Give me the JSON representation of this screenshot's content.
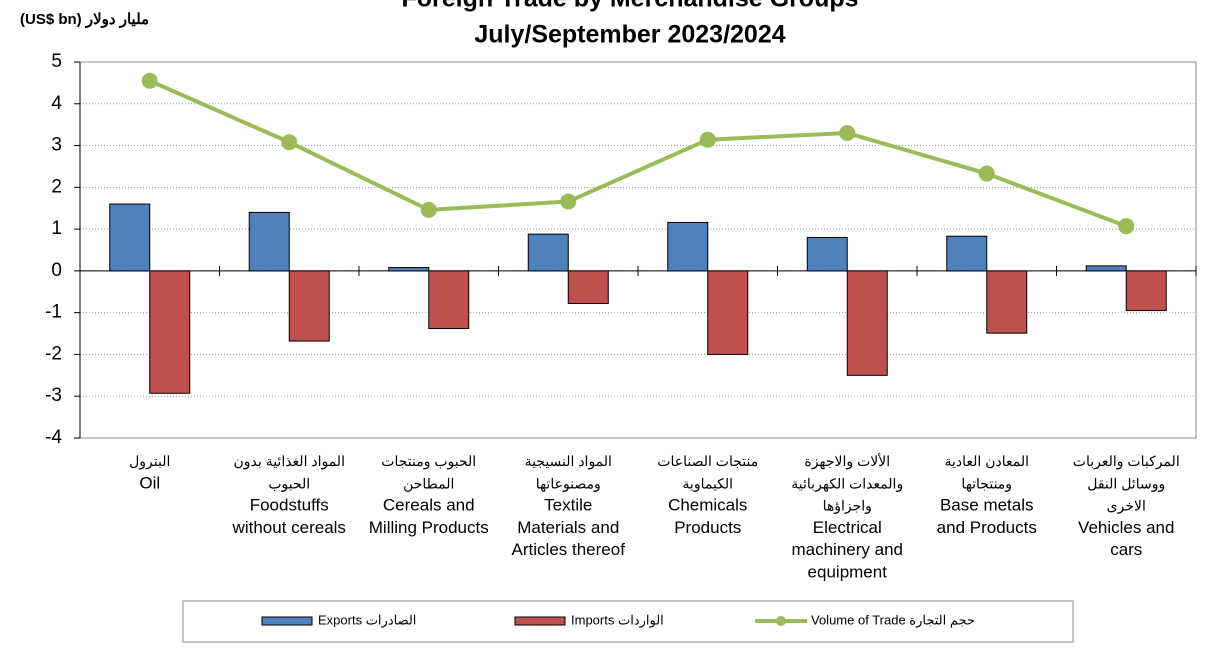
{
  "chart_data": {
    "type": "bar_line",
    "title": "Foreign Trade by Merchandise Groups",
    "subtitle": "July/September 2023/2024",
    "y_label": "(US$ bn) مليار دولار",
    "categories": [
      "البترول\nOil",
      "المواد الغذائية بدون\nالحبوب\nFoodstuffs\nwithout cereals",
      "الحبوب ومنتجات\nالمطاحن\nCereals and\nMilling Products",
      "المواد النسيجية\nومصنوعاتها\nTextile\nMaterials and\nArticles thereof",
      "منتجات الصناعات\nالكيماوية\nChemicals\nProducts",
      "الألات والاجهزة\nوالمعدات الكهربائية\nواجزاؤها\nElectrical\nmachinery and\nequipment",
      "المعادن العادية\nومنتجاتها\nBase metals\nand Products",
      "المركبات والعربات\nووسائل النقل\nالاخرى\nVehicles and\ncars"
    ],
    "series": [
      {
        "name": "Exports  الصادرات",
        "type": "bar",
        "color": "#4f81bd",
        "values": [
          1.6,
          1.4,
          0.08,
          0.88,
          1.16,
          0.8,
          0.83,
          0.12
        ]
      },
      {
        "name": "Imports الواردات",
        "type": "bar",
        "color": "#c0504d",
        "values": [
          -2.93,
          -1.68,
          -1.38,
          -0.78,
          -2.0,
          -2.5,
          -1.49,
          -0.95
        ]
      },
      {
        "name": "Volume of Trade حجم التجارة",
        "type": "line",
        "color": "#9bbb59",
        "values": [
          4.55,
          3.08,
          1.46,
          1.66,
          3.14,
          3.3,
          2.33,
          1.07
        ]
      }
    ],
    "ylim": [
      -4,
      5
    ],
    "yticks": [
      -4,
      -3,
      -2,
      -1,
      0,
      1,
      2,
      3,
      4,
      5
    ],
    "grid": true
  }
}
